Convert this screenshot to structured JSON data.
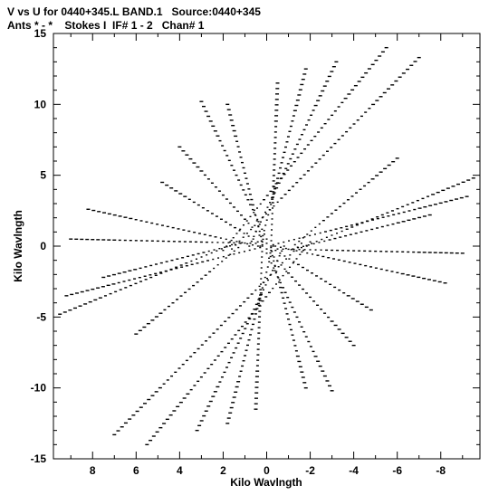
{
  "header": {
    "title_line1": "V vs U for 0440+345.L BAND.1   Source:0440+345",
    "title_line2": "Ants * - *    Stokes I  IF# 1 - 2   Chan# 1"
  },
  "chart_data": {
    "type": "scatter",
    "xlabel": "Kilo Wavlngth",
    "ylabel": "Kilo Wavlngth",
    "xlim": [
      9.8,
      -9.8
    ],
    "ylim": [
      -15,
      15
    ],
    "x_ticks": [
      8,
      6,
      4,
      2,
      0,
      -2,
      -4,
      -6,
      -8
    ],
    "x_tick_labels": [
      "8",
      "6",
      "4",
      "2",
      "0",
      "-2",
      "-4",
      "-6",
      "-8"
    ],
    "y_ticks": [
      15,
      10,
      5,
      0,
      -5,
      -10,
      -15
    ],
    "y_tick_labels": [
      "15",
      "10",
      "5",
      "0",
      "-5",
      "-10",
      "-15"
    ],
    "grid": false,
    "marker": "dash",
    "marker_color": "#000000",
    "tracks": [
      {
        "start": [
          2.0,
          -0.3
        ],
        "end": [
          -5.5,
          14.0
        ]
      },
      {
        "start": [
          1.6,
          -0.2
        ],
        "end": [
          -7.0,
          13.3
        ]
      },
      {
        "start": [
          0.8,
          0.0
        ],
        "end": [
          -3.2,
          13.0
        ]
      },
      {
        "start": [
          0.3,
          0.0
        ],
        "end": [
          -1.8,
          12.5
        ]
      },
      {
        "start": [
          -0.2,
          0.0
        ],
        "end": [
          -0.5,
          11.5
        ]
      },
      {
        "start": [
          0.2,
          0.3
        ],
        "end": [
          1.8,
          10.0
        ]
      },
      {
        "start": [
          0.0,
          0.5
        ],
        "end": [
          3.0,
          10.2
        ]
      },
      {
        "start": [
          0.0,
          0.2
        ],
        "end": [
          4.0,
          7.0
        ]
      },
      {
        "start": [
          0.2,
          0.1
        ],
        "end": [
          4.8,
          4.5
        ]
      },
      {
        "start": [
          0.4,
          0.0
        ],
        "end": [
          8.2,
          2.6
        ]
      },
      {
        "start": [
          0.3,
          -0.1
        ],
        "end": [
          9.2,
          -3.5
        ]
      },
      {
        "start": [
          -1.3,
          0.1
        ],
        "end": [
          -6.0,
          6.2
        ]
      },
      {
        "start": [
          -1.6,
          -0.1
        ],
        "end": [
          -9.5,
          4.8
        ]
      },
      {
        "start": [
          -1.2,
          -0.2
        ],
        "end": [
          -7.5,
          2.2
        ]
      },
      {
        "start": [
          -0.5,
          -0.2
        ],
        "end": [
          -9.0,
          -0.5
        ]
      },
      {
        "start": [
          -2.0,
          0.3
        ],
        "end": [
          5.5,
          -14.0
        ]
      },
      {
        "start": [
          -1.6,
          0.2
        ],
        "end": [
          7.0,
          -13.3
        ]
      },
      {
        "start": [
          -0.8,
          0.0
        ],
        "end": [
          3.2,
          -13.0
        ]
      },
      {
        "start": [
          -0.3,
          0.0
        ],
        "end": [
          1.8,
          -12.5
        ]
      },
      {
        "start": [
          0.2,
          0.0
        ],
        "end": [
          0.5,
          -11.5
        ]
      },
      {
        "start": [
          -0.2,
          -0.3
        ],
        "end": [
          -1.8,
          -10.0
        ]
      },
      {
        "start": [
          0.0,
          -0.5
        ],
        "end": [
          -3.0,
          -10.2
        ]
      },
      {
        "start": [
          0.0,
          -0.2
        ],
        "end": [
          -4.0,
          -7.0
        ]
      },
      {
        "start": [
          -0.2,
          -0.1
        ],
        "end": [
          -4.8,
          -4.5
        ]
      },
      {
        "start": [
          -0.4,
          0.0
        ],
        "end": [
          -8.2,
          -2.6
        ]
      },
      {
        "start": [
          -0.3,
          0.1
        ],
        "end": [
          -9.2,
          3.5
        ]
      },
      {
        "start": [
          1.3,
          -0.1
        ],
        "end": [
          6.0,
          -6.2
        ]
      },
      {
        "start": [
          1.6,
          0.1
        ],
        "end": [
          9.5,
          -4.8
        ]
      },
      {
        "start": [
          1.2,
          0.2
        ],
        "end": [
          7.5,
          -2.2
        ]
      },
      {
        "start": [
          0.5,
          0.2
        ],
        "end": [
          9.0,
          0.5
        ]
      }
    ]
  }
}
